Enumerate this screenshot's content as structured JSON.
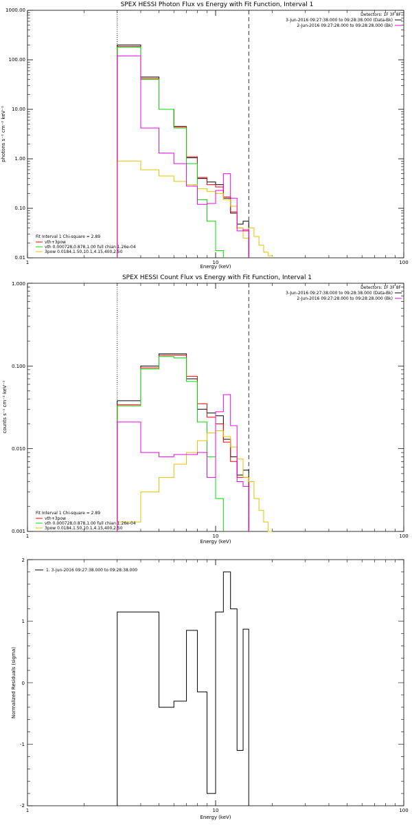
{
  "colors": {
    "data": "#000000",
    "total": "#ff0000",
    "vth": "#00dd00",
    "bpow": "#e6c000",
    "bk": "#ee00ee"
  },
  "chart_data": [
    {
      "type": "line",
      "title": "SPEX HESSI Photon Flux vs Energy with Fit Function, Interval 1",
      "xlabel": "Energy (keV)",
      "ylabel": "photons s⁻¹ cm⁻² keV⁻¹",
      "x_scale": "log",
      "y_scale": "log",
      "xlim": [
        1,
        100
      ],
      "ylim": [
        0.01,
        1000
      ],
      "x_ticks": [
        "1",
        "10",
        "100"
      ],
      "y_ticks": [
        "0.01",
        "0.10",
        "1.00",
        "10.00",
        "100.00",
        "1000.00"
      ],
      "header": [
        "Detectors: 1F 3F 8F",
        "3-Jun-2016 09:27:38.000 to 09:28:38.000 (Data-Bk)",
        "2-Jun-2016 09:27:28.000 to 09:28:28.000 (Bk)"
      ],
      "legend": {
        "heading": "Fit Interval 1   Chi-square = 2.89",
        "entries": [
          "vth+3pow",
          "vth 0.000728,0.878,1.00  full chian 1.26e-04",
          "3pow 0.0184,1.50,10.1,4.15,400,2.50"
        ]
      },
      "markers": {
        "dotted": 3.0,
        "dashed": 15.0
      },
      "bin_edges": [
        3,
        4,
        5,
        6,
        7,
        8,
        9,
        10,
        11,
        12,
        13,
        14,
        15,
        16,
        17,
        18,
        19,
        20
      ],
      "series": [
        {
          "values": [
            200,
            45,
            10,
            4.5,
            1.05,
            0.4,
            0.34,
            0.3,
            0.16,
            0.08,
            0.048,
            0.055
          ]
        },
        {
          "values": [
            185,
            42,
            10,
            4.4,
            1.1,
            0.42,
            0.3,
            0.27,
            0.17,
            0.085,
            0.04,
            0.035
          ]
        },
        {
          "values": [
            180,
            40,
            10,
            4.2,
            0.8,
            0.15,
            0.055,
            0.014
          ]
        },
        {
          "values": [
            0.9,
            0.6,
            0.45,
            0.35,
            0.3,
            0.25,
            0.22,
            0.2,
            0.15,
            0.11,
            0.04,
            0.025,
            0.04,
            0.027,
            0.018,
            0.013,
            0.011
          ]
        },
        {
          "values": [
            120,
            4.2,
            1.3,
            0.8,
            0.28,
            0.12,
            0.125,
            0.23,
            0.5,
            0.16,
            0.035,
            0.037
          ]
        }
      ]
    },
    {
      "type": "line",
      "title": "SPEX HESSI Count Flux vs Energy with Fit Function, Interval 1",
      "xlabel": "Energy (keV)",
      "ylabel": "counts s⁻¹ cm⁻² keV⁻¹",
      "x_scale": "log",
      "y_scale": "log",
      "xlim": [
        1,
        100
      ],
      "ylim": [
        0.001,
        1
      ],
      "x_ticks": [
        "1",
        "10",
        "100"
      ],
      "y_ticks": [
        "0.001",
        "0.010",
        "0.100",
        "1.000"
      ],
      "header": [
        "Detectors: 1F 3F 8F",
        "3-Jun-2016 09:27:38.000 to 09:28:38.000 (Data-Bk)",
        "2-Jun-2016 09:27:28.000 to 09:28:28.000 (Bk)"
      ],
      "legend": {
        "heading": "Fit Interval 1   Chi-square = 2.89",
        "entries": [
          "vth+3pow",
          "vth 0.000728,0.878,1.00  full chian 1.26e-04",
          "3pow 0.0184,1.50,10.1,4.15,400,2.50"
        ]
      },
      "markers": {
        "dotted": 3.0,
        "dashed": 15.0
      },
      "bin_edges": [
        3,
        4,
        5,
        6,
        7,
        8,
        9,
        10,
        11,
        12,
        13,
        14,
        15,
        16,
        17,
        18,
        19,
        20
      ],
      "series": [
        {
          "values": [
            0.038,
            0.1,
            0.14,
            0.14,
            0.07,
            0.03,
            0.027,
            0.025,
            0.013,
            0.008,
            0.0048,
            0.0055
          ]
        },
        {
          "values": [
            0.034,
            0.095,
            0.135,
            0.135,
            0.075,
            0.035,
            0.024,
            0.02,
            0.012,
            0.007,
            0.0045,
            0.0045
          ]
        },
        {
          "values": [
            0.033,
            0.092,
            0.13,
            0.125,
            0.065,
            0.021,
            0.008,
            0.0025
          ]
        },
        {
          "values": [
            0.0013,
            0.003,
            0.0045,
            0.0065,
            0.009,
            0.0125,
            0.0155,
            0.0165,
            0.014,
            0.0105,
            0.0075,
            0.0045,
            0.004,
            0.0025,
            0.0018,
            0.0013,
            0.001
          ]
        },
        {
          "values": [
            0.021,
            0.009,
            0.008,
            0.0085,
            0.0085,
            0.009,
            0.0045,
            0.028,
            0.045,
            0.019,
            0.004,
            0.0035
          ]
        }
      ]
    },
    {
      "type": "line",
      "title": "",
      "xlabel": "Energy (keV)",
      "ylabel": "Normalized Residuals (sigma)",
      "x_scale": "log",
      "xlim": [
        1,
        100
      ],
      "ylim": [
        -2,
        2
      ],
      "x_ticks": [
        "1",
        "10",
        "100"
      ],
      "y_ticks": [
        "-2",
        "-1",
        "0",
        "1",
        "2"
      ],
      "legend": {
        "entries": [
          "1.  3-Jun-2016 09:27:38.000 to 09:28:38.000"
        ]
      },
      "bin_edges": [
        3,
        4,
        5,
        6,
        7,
        8,
        9,
        10,
        11,
        12,
        13,
        14,
        15
      ],
      "series": [
        {
          "values": [
            1.15,
            1.15,
            -0.4,
            -0.3,
            0.85,
            -0.15,
            -1.8,
            1.15,
            1.8,
            1.2,
            -1.1,
            0.87
          ]
        }
      ]
    }
  ]
}
